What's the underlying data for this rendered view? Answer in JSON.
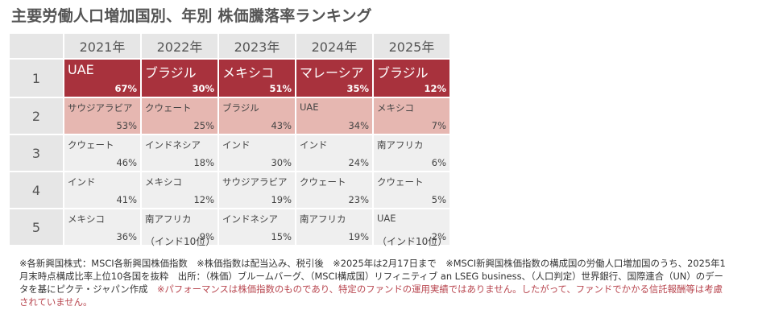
{
  "title": "主要労働人口増加国別、年別 株価騰落率ランキング",
  "years": [
    "2021年",
    "2022年",
    "2023年",
    "2024年",
    "2025年"
  ],
  "ranks": [
    "1",
    "2",
    "3",
    "4",
    "5"
  ],
  "rows": [
    [
      {
        "name": "UAE",
        "pct": "67%"
      },
      {
        "name": "ブラジル",
        "pct": "30%"
      },
      {
        "name": "メキシコ",
        "pct": "51%"
      },
      {
        "name": "マレーシア",
        "pct": "35%"
      },
      {
        "name": "ブラジル",
        "pct": "12%"
      }
    ],
    [
      {
        "name": "サウジアラビア",
        "pct": "53%"
      },
      {
        "name": "クウェート",
        "pct": "25%"
      },
      {
        "name": "ブラジル",
        "pct": "43%"
      },
      {
        "name": "UAE",
        "pct": "34%"
      },
      {
        "name": "メキシコ",
        "pct": "7%"
      }
    ],
    [
      {
        "name": "クウェート",
        "pct": "46%"
      },
      {
        "name": "インドネシア",
        "pct": "18%"
      },
      {
        "name": "インド",
        "pct": "30%"
      },
      {
        "name": "インド",
        "pct": "24%"
      },
      {
        "name": "南アフリカ",
        "pct": "6%"
      }
    ],
    [
      {
        "name": "インド",
        "pct": "41%"
      },
      {
        "name": "メキシコ",
        "pct": "12%"
      },
      {
        "name": "サウジアラビア",
        "pct": "19%"
      },
      {
        "name": "クウェート",
        "pct": "23%"
      },
      {
        "name": "クウェート",
        "pct": "5%"
      }
    ],
    [
      {
        "name": "メキシコ",
        "pct": "36%"
      },
      {
        "name": "南アフリカ",
        "pct": "9%"
      },
      {
        "name": "インドネシア",
        "pct": "15%"
      },
      {
        "name": "南アフリカ",
        "pct": "19%"
      },
      {
        "name": "UAE",
        "pct": "2%"
      }
    ]
  ],
  "under_notes": {
    "y2022": "（インド10位）",
    "y2025": "（インド10位）"
  },
  "footnote": {
    "text": "※各新興国株式：MSCI各新興国株価指数　※株価指数は配当込み、税引後　※2025年は2月17日まで　※MSCI新興国株価指数の構成国の労働人口増加国のうち、2025年1月末時点構成比率上位10各国を抜粋　出所：（株価）ブルームバーグ、（MSCI構成国）リフィニティブ an LSEG business、（人口判定）世界銀行、国際連合（UN）のデータを基にピクテ・ジャパン作成　",
    "red_text": "※パフォーマンスは株価指数のものであり、特定のファンドの運用実績ではありません。したがって、ファンドでかかる信託報酬等は考慮されていません。"
  },
  "colors": {
    "rank1_bg": "#a8323d",
    "rank2_bg": "#e6b7b1",
    "other_bg": "#efefef",
    "header_bg": "#e6e6e6",
    "note_red": "#b8464f"
  }
}
